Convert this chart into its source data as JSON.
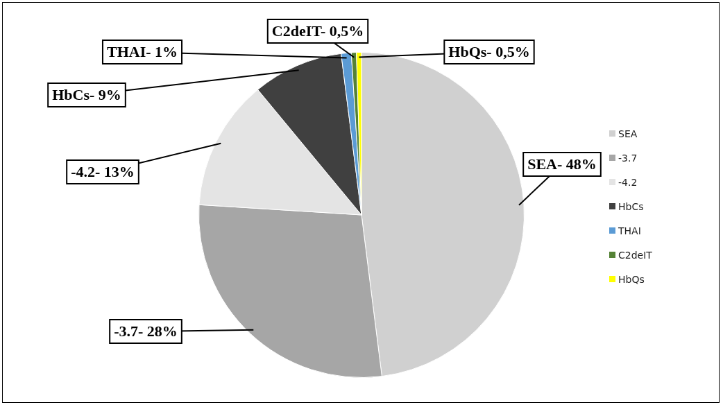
{
  "chart_data": {
    "type": "pie",
    "categories": [
      "SEA",
      "-3.7",
      "-4.2",
      "HbCs",
      "THAI",
      "C2deIT",
      "HbQs"
    ],
    "values": [
      48,
      28,
      13,
      9,
      1,
      0.5,
      0.5
    ],
    "colors": [
      "#d0d0d0",
      "#a6a6a6",
      "#e4e4e4",
      "#404040",
      "#5b9bd5",
      "#548235",
      "#ffff00"
    ],
    "annotations": [
      "SEA- 48%",
      "-3.7- 28%",
      "-4.2- 13%",
      "HbCs- 9%",
      "THAI- 1%",
      "C2deIT- 0,5%",
      "HbQs- 0,5%"
    ],
    "legend": "right"
  }
}
